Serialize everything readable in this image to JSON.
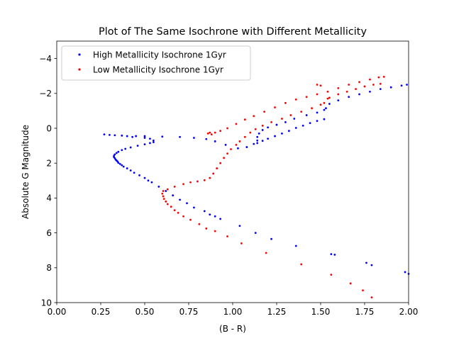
{
  "chart_data": {
    "type": "scatter",
    "title": "Plot of The Same Isochrone with Different Metallicity",
    "xlabel": "(B - R)",
    "ylabel": "Absolute G Magnitude",
    "xlim": [
      0.0,
      2.0
    ],
    "ylim": [
      10,
      -5
    ],
    "y_inverted": true,
    "grid": false,
    "legend_position": "top-left",
    "xticks": [
      "0.00",
      "0.25",
      "0.50",
      "0.75",
      "1.00",
      "1.25",
      "1.50",
      "1.75",
      "2.00"
    ],
    "yticks": [
      "−4",
      "−2",
      "0",
      "2",
      "4",
      "6",
      "8",
      "10"
    ],
    "series": [
      {
        "name": "High Metallicity Isochrone 1Gyr",
        "color": "#0000ff",
        "points": [
          [
            2.0,
            8.35
          ],
          [
            1.98,
            8.25
          ],
          [
            1.79,
            7.85
          ],
          [
            1.76,
            7.72
          ],
          [
            1.58,
            7.25
          ],
          [
            1.56,
            7.22
          ],
          [
            1.36,
            6.75
          ],
          [
            1.22,
            6.35
          ],
          [
            1.13,
            6.0
          ],
          [
            1.04,
            5.6
          ],
          [
            0.93,
            5.2
          ],
          [
            0.9,
            5.05
          ],
          [
            0.87,
            4.95
          ],
          [
            0.84,
            4.75
          ],
          [
            0.78,
            4.55
          ],
          [
            0.74,
            4.3
          ],
          [
            0.7,
            4.1
          ],
          [
            0.66,
            3.85
          ],
          [
            0.62,
            3.6
          ],
          [
            0.58,
            3.35
          ],
          [
            0.54,
            3.1
          ],
          [
            0.52,
            3.0
          ],
          [
            0.5,
            2.85
          ],
          [
            0.47,
            2.7
          ],
          [
            0.44,
            2.55
          ],
          [
            0.42,
            2.42
          ],
          [
            0.4,
            2.3
          ],
          [
            0.38,
            2.2
          ],
          [
            0.37,
            2.12
          ],
          [
            0.36,
            2.05
          ],
          [
            0.35,
            1.98
          ],
          [
            0.345,
            1.9
          ],
          [
            0.34,
            1.85
          ],
          [
            0.335,
            1.8
          ],
          [
            0.33,
            1.72
          ],
          [
            0.325,
            1.65
          ],
          [
            0.325,
            1.58
          ],
          [
            0.33,
            1.5
          ],
          [
            0.34,
            1.42
          ],
          [
            0.35,
            1.35
          ],
          [
            0.37,
            1.25
          ],
          [
            0.39,
            1.18
          ],
          [
            0.42,
            1.1
          ],
          [
            0.46,
            1.0
          ],
          [
            0.5,
            0.92
          ],
          [
            0.53,
            0.85
          ],
          [
            0.55,
            0.8
          ],
          [
            0.55,
            0.7
          ],
          [
            0.53,
            0.6
          ],
          [
            0.5,
            0.55
          ],
          [
            0.5,
            0.45
          ],
          [
            0.45,
            0.45
          ],
          [
            0.43,
            0.5
          ],
          [
            0.4,
            0.45
          ],
          [
            0.37,
            0.42
          ],
          [
            0.33,
            0.4
          ],
          [
            0.3,
            0.38
          ],
          [
            0.27,
            0.35
          ],
          [
            0.6,
            0.48
          ],
          [
            0.7,
            0.5
          ],
          [
            0.78,
            0.55
          ],
          [
            0.85,
            0.62
          ],
          [
            0.9,
            0.75
          ],
          [
            0.96,
            0.95
          ],
          [
            1.03,
            1.15
          ],
          [
            1.08,
            1.08
          ],
          [
            1.12,
            0.9
          ],
          [
            1.14,
            0.7
          ],
          [
            1.14,
            0.5
          ],
          [
            1.15,
            0.3
          ],
          [
            1.17,
            0.1
          ],
          [
            1.2,
            -0.05
          ],
          [
            1.25,
            -0.2
          ],
          [
            1.3,
            -0.35
          ],
          [
            1.35,
            -0.55
          ],
          [
            1.42,
            -0.75
          ],
          [
            1.48,
            -0.9
          ],
          [
            1.52,
            -1.05
          ],
          [
            1.53,
            -1.15
          ],
          [
            1.55,
            -1.4
          ],
          [
            1.6,
            -1.6
          ],
          [
            1.66,
            -1.8
          ],
          [
            1.72,
            -1.95
          ],
          [
            1.78,
            -2.1
          ],
          [
            1.84,
            -2.25
          ],
          [
            1.9,
            -2.35
          ],
          [
            1.96,
            -2.45
          ],
          [
            1.99,
            -2.5
          ],
          [
            1.14,
            0.85
          ],
          [
            1.17,
            0.72
          ],
          [
            1.2,
            0.6
          ],
          [
            1.24,
            0.45
          ],
          [
            1.28,
            0.3
          ],
          [
            1.32,
            0.15
          ],
          [
            1.36,
            -0.02
          ],
          [
            1.4,
            -0.15
          ],
          [
            1.44,
            -0.3
          ],
          [
            1.48,
            -0.42
          ],
          [
            1.52,
            -0.52
          ]
        ]
      },
      {
        "name": "Low Metallicity Isochrone 1Gyr",
        "color": "#ff0000",
        "points": [
          [
            1.79,
            9.7
          ],
          [
            1.74,
            9.3
          ],
          [
            1.67,
            8.9
          ],
          [
            1.56,
            8.4
          ],
          [
            1.39,
            7.8
          ],
          [
            1.19,
            7.15
          ],
          [
            1.05,
            6.6
          ],
          [
            0.97,
            6.2
          ],
          [
            0.9,
            5.9
          ],
          [
            0.85,
            5.75
          ],
          [
            0.81,
            5.5
          ],
          [
            0.76,
            5.25
          ],
          [
            0.72,
            5.05
          ],
          [
            0.69,
            4.85
          ],
          [
            0.67,
            4.7
          ],
          [
            0.65,
            4.5
          ],
          [
            0.63,
            4.35
          ],
          [
            0.62,
            4.2
          ],
          [
            0.61,
            4.05
          ],
          [
            0.605,
            3.9
          ],
          [
            0.6,
            3.75
          ],
          [
            0.605,
            3.6
          ],
          [
            0.63,
            3.5
          ],
          [
            0.67,
            3.35
          ],
          [
            0.72,
            3.2
          ],
          [
            0.76,
            3.1
          ],
          [
            0.8,
            3.05
          ],
          [
            0.84,
            2.98
          ],
          [
            0.87,
            2.85
          ],
          [
            0.89,
            2.6
          ],
          [
            0.91,
            2.3
          ],
          [
            0.93,
            2.0
          ],
          [
            0.95,
            1.7
          ],
          [
            0.97,
            1.45
          ],
          [
            0.99,
            1.2
          ],
          [
            1.02,
            0.95
          ],
          [
            1.04,
            0.75
          ],
          [
            1.07,
            0.5
          ],
          [
            1.1,
            0.25
          ],
          [
            1.13,
            0.05
          ],
          [
            1.17,
            -0.15
          ],
          [
            1.22,
            -0.35
          ],
          [
            1.28,
            -0.55
          ],
          [
            1.33,
            -0.75
          ],
          [
            1.39,
            -0.95
          ],
          [
            1.45,
            -1.15
          ],
          [
            1.5,
            -1.35
          ],
          [
            1.52,
            -1.45
          ],
          [
            1.54,
            -1.7
          ],
          [
            1.5,
            -2.45
          ],
          [
            1.48,
            -2.5
          ],
          [
            1.55,
            -1.75
          ],
          [
            1.6,
            -1.95
          ],
          [
            1.65,
            -2.1
          ],
          [
            1.7,
            -2.25
          ],
          [
            1.75,
            -2.4
          ],
          [
            1.8,
            -2.5
          ],
          [
            1.84,
            -2.55
          ],
          [
            1.86,
            -2.95
          ],
          [
            0.86,
            0.3
          ],
          [
            0.87,
            0.25
          ],
          [
            0.88,
            0.35
          ],
          [
            0.9,
            0.25
          ],
          [
            0.93,
            0.15
          ],
          [
            0.97,
            0.0
          ],
          [
            1.02,
            -0.25
          ],
          [
            1.07,
            -0.5
          ],
          [
            1.12,
            -0.7
          ],
          [
            1.18,
            -0.95
          ],
          [
            1.24,
            -1.2
          ],
          [
            1.3,
            -1.45
          ],
          [
            1.36,
            -1.65
          ],
          [
            1.42,
            -1.8
          ],
          [
            1.48,
            -1.95
          ],
          [
            1.54,
            -2.1
          ],
          [
            1.6,
            -2.3
          ],
          [
            1.66,
            -2.5
          ],
          [
            1.72,
            -2.65
          ],
          [
            1.78,
            -2.8
          ],
          [
            1.83,
            -2.92
          ]
        ]
      }
    ]
  }
}
